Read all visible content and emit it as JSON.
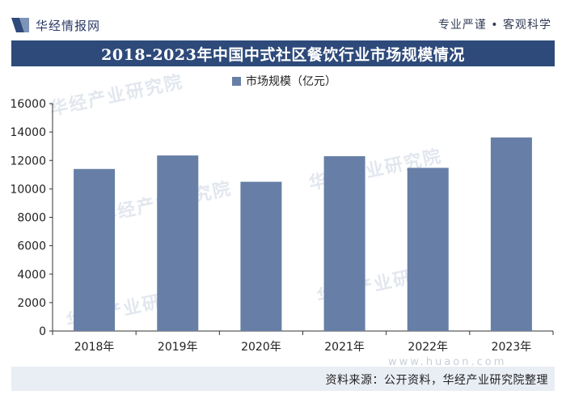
{
  "header": {
    "logo_text": "华经情报网",
    "slogan": "专业严谨 • 客观科学"
  },
  "watermark": {
    "text": "华经产业研究院",
    "site": "www.huaon.com"
  },
  "source": {
    "text": "资料来源：公开资料，华经产业研究院整理"
  },
  "colors": {
    "bar": "#677fa6",
    "title_bg": "#2e4a7a",
    "source_bg": "#e9edf4"
  },
  "chart_data": {
    "type": "bar",
    "title": "2018-2023年中国中式社区餐饮行业市场规模情况",
    "categories": [
      "2018年",
      "2019年",
      "2020年",
      "2021年",
      "2022年",
      "2023年"
    ],
    "series": [
      {
        "name": "市场规模（亿元）",
        "values": [
          11400,
          12350,
          10500,
          12300,
          11480,
          13620
        ]
      }
    ],
    "ylim": [
      0,
      16000
    ],
    "yticks": [
      0,
      2000,
      4000,
      6000,
      8000,
      10000,
      12000,
      14000,
      16000
    ],
    "xlabel": "",
    "ylabel": "",
    "legend": "top-center",
    "grid": false
  }
}
